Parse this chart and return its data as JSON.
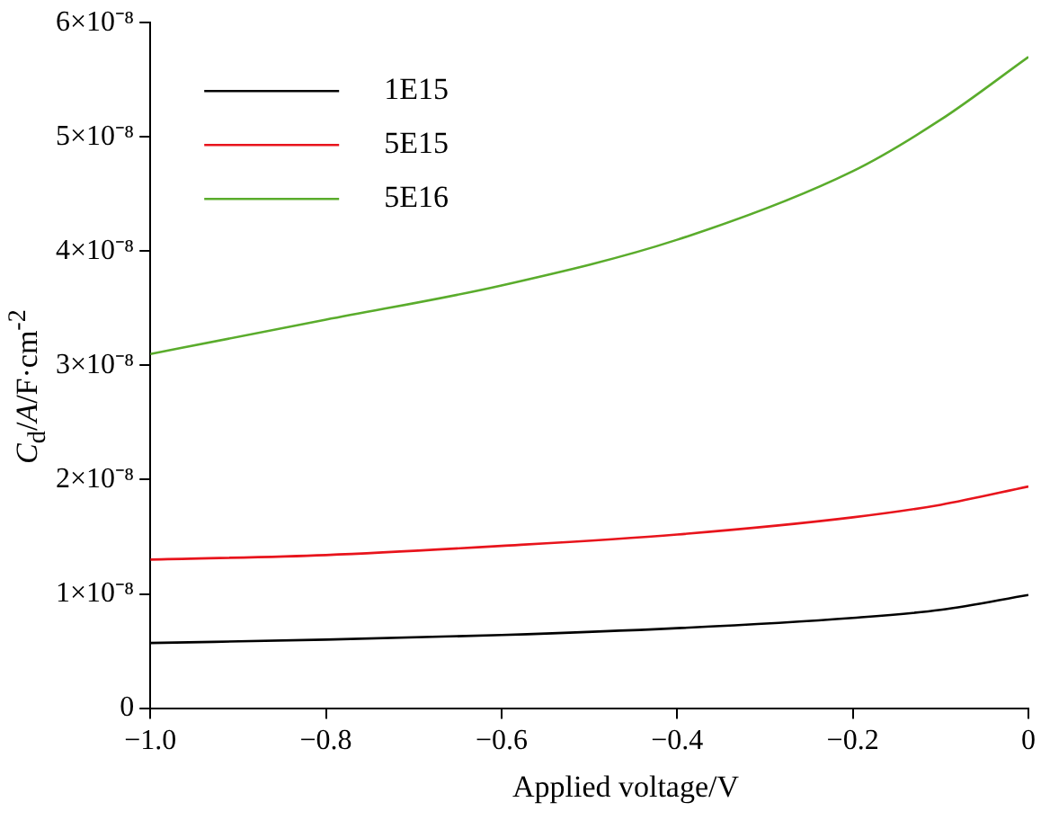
{
  "chart_data": {
    "type": "line",
    "xlabel": "Applied voltage/V",
    "ylabel": "C$_{d}$/A/F·cm$^{-2}$",
    "x": [
      -1,
      -0.8,
      -0.6,
      -0.4,
      -0.2,
      -0.1,
      0
    ],
    "series": [
      {
        "name": "1E15",
        "color": "#000000",
        "values": [
          5.7e-09,
          6e-09,
          6.4e-09,
          7e-09,
          7.9e-09,
          8.6e-09,
          9.9e-09
        ]
      },
      {
        "name": "5E15",
        "color": "#e8141c",
        "values": [
          1.3e-08,
          1.34e-08,
          1.42e-08,
          1.52e-08,
          1.67e-08,
          1.78e-08,
          1.94e-08
        ]
      },
      {
        "name": "5E16",
        "color": "#5aac2c",
        "values": [
          3.1e-08,
          3.4e-08,
          3.7e-08,
          4.1e-08,
          4.7e-08,
          5.15e-08,
          5.7e-08
        ]
      }
    ],
    "xlim": [
      -1,
      0
    ],
    "xticks": [
      {
        "value": -1,
        "label": "−1.0"
      },
      {
        "value": -0.8,
        "label": "−0.8"
      },
      {
        "value": -0.6,
        "label": "−0.6"
      },
      {
        "value": -0.4,
        "label": "−0.4"
      },
      {
        "value": -0.2,
        "label": "−0.2"
      },
      0
    ],
    "ylim": [
      0,
      6e-08
    ],
    "yticks": [
      0,
      {
        "value": 1e-08,
        "label": "1×10⁻⁸"
      },
      {
        "value": 2e-08,
        "label": "2×10⁻⁸"
      },
      {
        "value": 3e-08,
        "label": "3×10⁻⁸"
      },
      {
        "value": 4e-08,
        "label": "4×10⁻⁸"
      },
      {
        "value": 5e-08,
        "label": "5×10⁻⁸"
      },
      {
        "value": 6e-08,
        "label": "6×10⁻⁸"
      }
    ],
    "grid": false,
    "legend": "top left",
    "marker": "none",
    "line_style": "solid"
  }
}
